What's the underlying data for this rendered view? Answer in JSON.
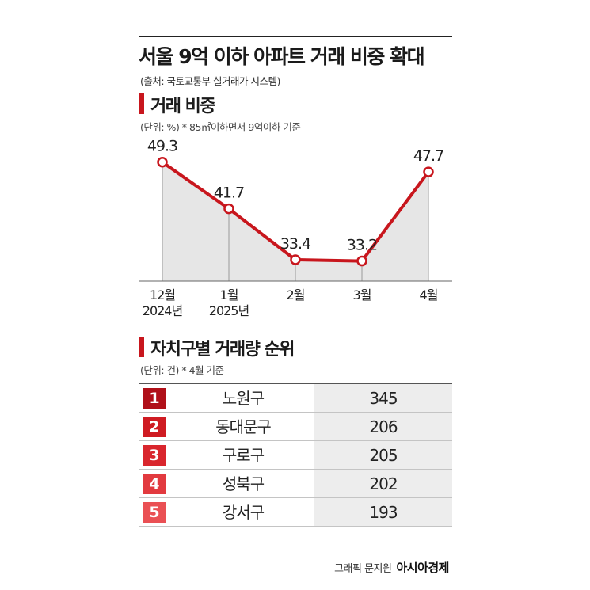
{
  "title": "서울 9억 이하 아파트 거래 비중 확대",
  "source": "(출처: 국토교통부 실거래가 시스템)",
  "section1": {
    "title": "거래 비중",
    "note": "(단위: %)  * 85㎡이하면서 9억이하 기준"
  },
  "section2": {
    "title": "자치구별 거래량 순위",
    "note": "(단위: 건)  * 4월 기준"
  },
  "colors": {
    "accent": "#c8161d",
    "area": "#e6e6e6",
    "value_bg": "#ededed"
  },
  "chart_data": {
    "type": "line",
    "x": [
      [
        "12월",
        "2024년"
      ],
      [
        "1월",
        "2025년"
      ],
      [
        "2월"
      ],
      [
        "3월"
      ],
      [
        "4월"
      ]
    ],
    "series": [
      {
        "values": [
          49.3,
          41.7,
          33.4,
          33.2,
          47.7
        ]
      }
    ],
    "data_labels": [
      "49.3",
      "41.7",
      "33.4",
      "33.2",
      "47.7"
    ],
    "area_fill": true,
    "grid": false
  },
  "ranking": {
    "rows": [
      {
        "rank": "1",
        "district": "노원구",
        "value": "345"
      },
      {
        "rank": "2",
        "district": "동대문구",
        "value": "206"
      },
      {
        "rank": "3",
        "district": "구로구",
        "value": "205"
      },
      {
        "rank": "4",
        "district": "성북구",
        "value": "202"
      },
      {
        "rank": "5",
        "district": "강서구",
        "value": "193"
      }
    ],
    "rank_colors": [
      "#b01019",
      "#cf1b22",
      "#d9262d",
      "#e23a3f",
      "#ea5054"
    ]
  },
  "credit": {
    "text": "그래픽 문지원",
    "brand": "아시아경제"
  }
}
